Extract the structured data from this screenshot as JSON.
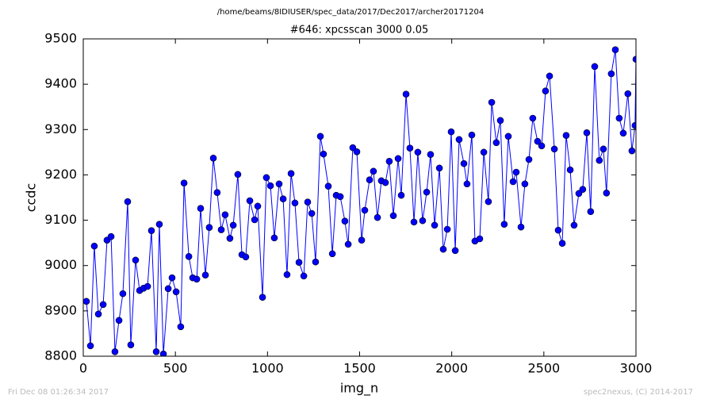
{
  "chart_data": {
    "type": "line",
    "suptitle": "/home/beams/8IDIUSER/spec_data/2017/Dec2017/archer20171204",
    "title": "#646: xpcsscan 3000 0.05",
    "x_label": "img_n",
    "y_label": "ccdc",
    "footer_left": "Fri Dec 08 01:26:34 2017",
    "footer_right": "spec2nexus, (C) 2014-2017",
    "color": "#0000ff",
    "x": [
      17,
      39,
      60,
      82,
      108,
      129,
      151,
      172,
      194,
      215,
      241,
      258,
      284,
      306,
      327,
      349,
      370,
      396,
      413,
      435,
      461,
      482,
      504,
      529,
      547,
      573,
      594,
      616,
      637,
      663,
      684,
      706,
      727,
      749,
      770,
      796,
      814,
      839,
      861,
      882,
      904,
      930,
      947,
      973,
      994,
      1016,
      1037,
      1063,
      1085,
      1106,
      1128,
      1149,
      1171,
      1197,
      1218,
      1240,
      1261,
      1287,
      1304,
      1330,
      1352,
      1373,
      1395,
      1420,
      1438,
      1463,
      1485,
      1511,
      1528,
      1554,
      1575,
      1597,
      1618,
      1640,
      1661,
      1683,
      1709,
      1726,
      1752,
      1773,
      1795,
      1816,
      1842,
      1864,
      1885,
      1907,
      1933,
      1954,
      1976,
      1997,
      2019,
      2040,
      2066,
      2083,
      2109,
      2126,
      2152,
      2174,
      2199,
      2217,
      2242,
      2264,
      2285,
      2307,
      2333,
      2350,
      2376,
      2397,
      2419,
      2440,
      2466,
      2488,
      2509,
      2531,
      2557,
      2578,
      2600,
      2621,
      2643,
      2664,
      2690,
      2711,
      2733,
      2754,
      2776,
      2801,
      2823,
      2840,
      2866,
      2888,
      2909,
      2931,
      2956,
      2978,
      2995,
      3000
    ],
    "values": [
      8921,
      8823,
      9043,
      8893,
      8914,
      9056,
      9064,
      8810,
      8879,
      8938,
      9141,
      8825,
      9012,
      8945,
      8950,
      8954,
      9077,
      8810,
      9091,
      8805,
      8949,
      8973,
      8942,
      8865,
      9182,
      9020,
      8973,
      8970,
      9126,
      8979,
      9084,
      9237,
      9161,
      9079,
      9112,
      9060,
      9089,
      9201,
      9024,
      9019,
      9143,
      9101,
      9131,
      8930,
      9194,
      9176,
      9061,
      9180,
      9147,
      8980,
      9203,
      9138,
      9007,
      8977,
      9140,
      9115,
      9008,
      9285,
      9246,
      9175,
      9026,
      9155,
      9152,
      9098,
      9047,
      9260,
      9251,
      9056,
      9122,
      9189,
      9208,
      9106,
      9187,
      9183,
      9230,
      9110,
      9236,
      9155,
      9378,
      9259,
      9096,
      9250,
      9099,
      9162,
      9245,
      9089,
      9215,
      9036,
      9080,
      9295,
      9033,
      9278,
      9225,
      9180,
      9288,
      9054,
      9059,
      9250,
      9141,
      9360,
      9271,
      9320,
      9091,
      9285,
      9185,
      9206,
      9085,
      9180,
      9234,
      9325,
      9274,
      9264,
      9385,
      9418,
      9257,
      9078,
      9049,
      9287,
      9211,
      9089,
      9159,
      9168,
      9293,
      9119,
      9439,
      9232,
      9257,
      9160,
      9423,
      9476,
      9325,
      9292,
      9379,
      9253,
      9309,
      9455
    ],
    "xlim": [
      0,
      3000
    ],
    "xticks": [
      0,
      500,
      1000,
      1500,
      2000,
      2500,
      3000
    ],
    "ylim": [
      8800,
      9500
    ],
    "yticks": [
      8800,
      8900,
      9000,
      9100,
      9200,
      9300,
      9400,
      9500
    ]
  }
}
